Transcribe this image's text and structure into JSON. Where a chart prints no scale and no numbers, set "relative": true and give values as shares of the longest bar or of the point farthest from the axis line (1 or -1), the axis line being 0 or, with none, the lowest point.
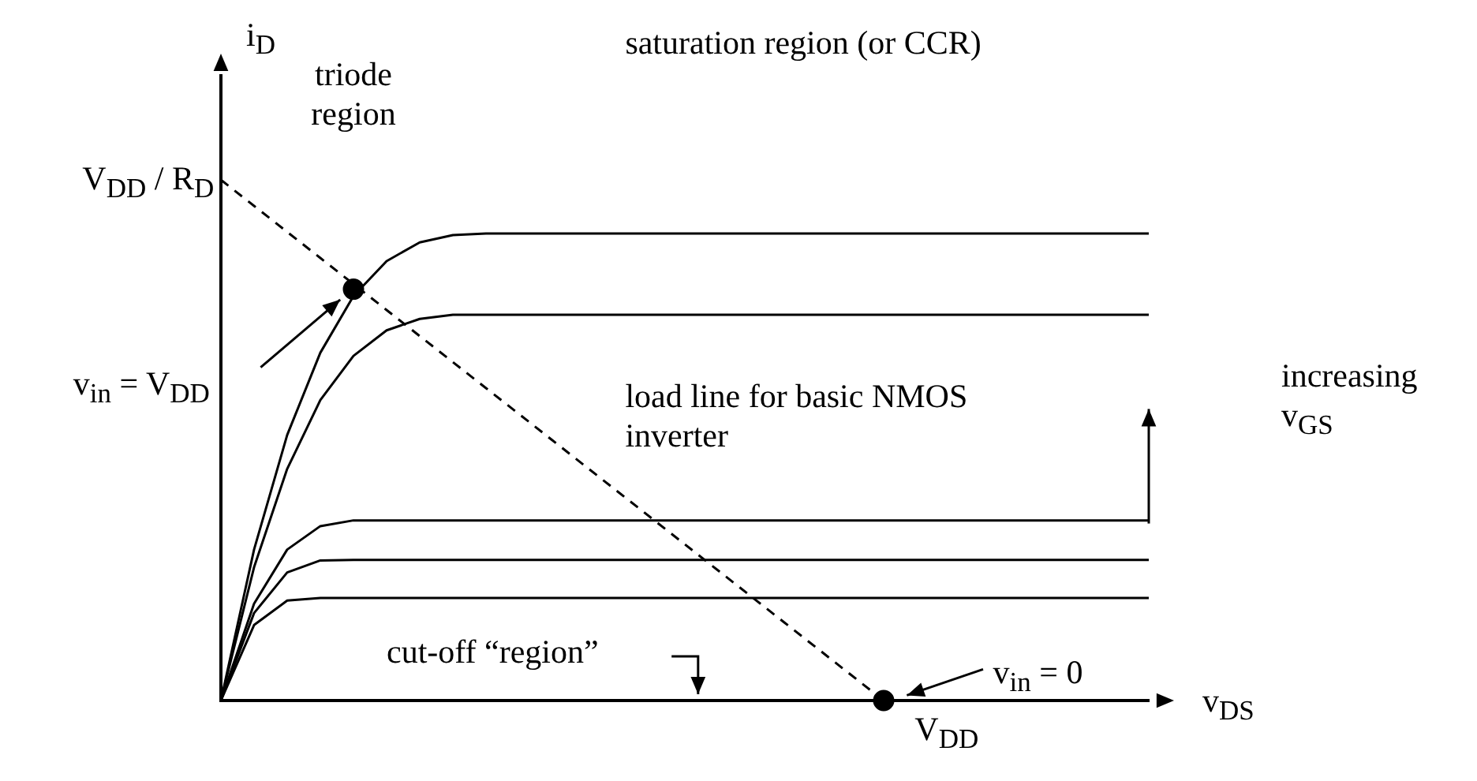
{
  "chart_data": {
    "type": "line",
    "relative": true,
    "marker": "none",
    "xlabel": "v$_{DS}$",
    "ylabel": "i$_{D}$",
    "categories": [
      null,
      null,
      null,
      null,
      null,
      null,
      null,
      null,
      null,
      null,
      null,
      null,
      null,
      null,
      null,
      null,
      null,
      null,
      null,
      null,
      null,
      null,
      null,
      null,
      null,
      null,
      null,
      null,
      null
    ],
    "series": [
      {
        "color": "#000000",
        "values": [
          0,
          0.29,
          0.51,
          0.668,
          0.777,
          0.844,
          0.88,
          0.894,
          0.897,
          0.897,
          0.897,
          0.897,
          0.897,
          0.897,
          0.897,
          0.897,
          0.897,
          0.897,
          0.897,
          0.897,
          0.897,
          0.897,
          0.897,
          0.897,
          0.897,
          0.897,
          0.897,
          0.897,
          0.897
        ]
      },
      {
        "color": "#000000",
        "values": [
          0,
          0.256,
          0.445,
          0.577,
          0.662,
          0.711,
          0.733,
          0.741,
          0.741,
          0.741,
          0.741,
          0.741,
          0.741,
          0.741,
          0.741,
          0.741,
          0.741,
          0.741,
          0.741,
          0.741,
          0.741,
          0.741,
          0.741,
          0.741,
          0.741,
          0.741,
          0.741,
          0.741,
          0.741
        ]
      },
      {
        "color": "#000000",
        "values": [
          0,
          0.186,
          0.29,
          0.335,
          0.346,
          0.346,
          0.346,
          0.346,
          0.346,
          0.346,
          0.346,
          0.346,
          0.346,
          0.346,
          0.346,
          0.346,
          0.346,
          0.346,
          0.346,
          0.346,
          0.346,
          0.346,
          0.346,
          0.346,
          0.346,
          0.346,
          0.346,
          0.346,
          0.346
        ]
      },
      {
        "color": "#000000",
        "values": [
          0,
          0.168,
          0.246,
          0.269,
          0.27,
          0.27,
          0.27,
          0.27,
          0.27,
          0.27,
          0.27,
          0.27,
          0.27,
          0.27,
          0.27,
          0.27,
          0.27,
          0.27,
          0.27,
          0.27,
          0.27,
          0.27,
          0.27,
          0.27,
          0.27,
          0.27,
          0.27,
          0.27,
          0.27
        ]
      },
      {
        "color": "#000000",
        "values": [
          0,
          0.145,
          0.192,
          0.197,
          0.197,
          0.197,
          0.197,
          0.197,
          0.197,
          0.197,
          0.197,
          0.197,
          0.197,
          0.197,
          0.197,
          0.197,
          0.197,
          0.197,
          0.197,
          0.197,
          0.197,
          0.197,
          0.197,
          0.197,
          0.197,
          0.197,
          0.197,
          0.197,
          0.197
        ]
      },
      {
        "color": "#000000",
        "line_style": "dashed",
        "values": [
          1,
          0.95,
          0.9,
          0.85,
          0.8,
          0.75,
          0.7,
          0.65,
          0.6,
          0.55,
          0.5,
          0.45,
          0.4,
          0.35,
          0.3,
          0.25,
          0.2,
          0.15,
          0.1,
          0.05,
          0,
          null,
          null,
          null,
          null,
          null,
          null,
          null,
          null
        ]
      },
      {
        "marker": "circle",
        "color": "#000000",
        "values": [
          null,
          null,
          null,
          null,
          0.79,
          null,
          null,
          null,
          null,
          null,
          null,
          null,
          null,
          null,
          null,
          null,
          null,
          null,
          null,
          null,
          0,
          null,
          null,
          null,
          null,
          null,
          null,
          null,
          null
        ]
      }
    ],
    "annotations": [
      "triode region",
      "saturation region (or CCR)",
      "load line for basic NMOS inverter",
      "increasing v$_{GS}$",
      "cut-off “region”",
      "V$_{DD}$ / R$_{D}$",
      "v$_{in}$ = V$_{DD}$",
      "v$_{in}$ = 0",
      "V$_{DD}$"
    ]
  }
}
